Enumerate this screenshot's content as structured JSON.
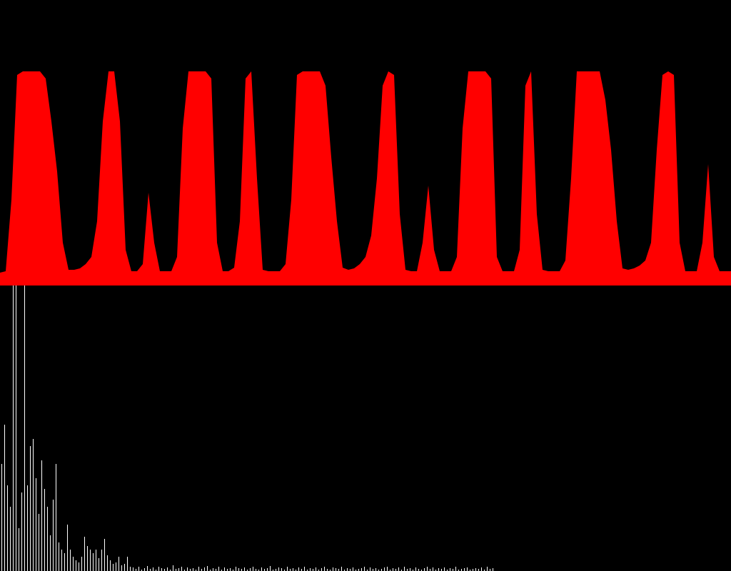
{
  "chart_data": [
    {
      "type": "area",
      "color": "#ff0000",
      "ylim": [
        0,
        400
      ],
      "values": [
        18,
        20,
        120,
        295,
        300,
        300,
        300,
        300,
        290,
        230,
        160,
        60,
        22,
        22,
        24,
        30,
        40,
        90,
        230,
        300,
        300,
        230,
        50,
        20,
        20,
        30,
        130,
        60,
        20,
        20,
        20,
        40,
        220,
        300,
        300,
        300,
        300,
        290,
        60,
        20,
        20,
        25,
        90,
        290,
        300,
        150,
        22,
        20,
        20,
        20,
        30,
        120,
        295,
        300,
        300,
        300,
        300,
        280,
        180,
        90,
        25,
        22,
        24,
        30,
        40,
        70,
        150,
        280,
        300,
        295,
        100,
        22,
        20,
        20,
        60,
        140,
        50,
        20,
        20,
        20,
        40,
        220,
        300,
        300,
        300,
        300,
        290,
        40,
        20,
        20,
        20,
        50,
        280,
        300,
        100,
        22,
        20,
        20,
        20,
        35,
        150,
        300,
        300,
        300,
        300,
        300,
        260,
        190,
        90,
        24,
        22,
        24,
        28,
        35,
        60,
        190,
        295,
        300,
        295,
        60,
        20,
        20,
        20,
        60,
        170,
        40,
        20,
        20,
        20
      ]
    },
    {
      "type": "bar",
      "color": "#ffffff",
      "ylim": [
        0,
        400
      ],
      "values": [
        150,
        205,
        120,
        90,
        400,
        400,
        60,
        110,
        400,
        120,
        175,
        185,
        130,
        80,
        155,
        115,
        90,
        50,
        100,
        150,
        40,
        30,
        25,
        65,
        30,
        20,
        15,
        12,
        20,
        48,
        35,
        30,
        25,
        30,
        18,
        30,
        45,
        22,
        15,
        10,
        12,
        20,
        8,
        10,
        20,
        6,
        5,
        3,
        6,
        2,
        4,
        7,
        3,
        5,
        2,
        6,
        4,
        3,
        5,
        2,
        8,
        3,
        4,
        6,
        2,
        5,
        3,
        4,
        2,
        6,
        3,
        5,
        7,
        2,
        4,
        3,
        6,
        2,
        5,
        3,
        4,
        2,
        6,
        4,
        3,
        5,
        2,
        4,
        6,
        3,
        2,
        5,
        3,
        4,
        7,
        2,
        3,
        5,
        4,
        2,
        6,
        3,
        4,
        2,
        5,
        3,
        6,
        2,
        4,
        3,
        5,
        2,
        4,
        6,
        3,
        2,
        5,
        4,
        3,
        6,
        2,
        4,
        3,
        5,
        2,
        3,
        4,
        6,
        2,
        5,
        3,
        4,
        2,
        3,
        5,
        6,
        2,
        4,
        3,
        5,
        2,
        6,
        3,
        4,
        2,
        5,
        3,
        2,
        4,
        6,
        3,
        5,
        2,
        4,
        3,
        5,
        2,
        4,
        3,
        6,
        2,
        3,
        4,
        5,
        2,
        3,
        4,
        3,
        5,
        2,
        6,
        3,
        4
      ]
    }
  ]
}
